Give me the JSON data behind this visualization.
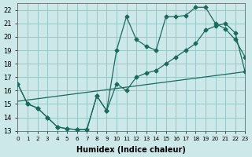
{
  "xlabel": "Humidex (Indice chaleur)",
  "bg_color": "#cce8e8",
  "grid_color": "#99c8c8",
  "line_color": "#1a6b5e",
  "xlim": [
    0,
    23
  ],
  "ylim": [
    13,
    22.5
  ],
  "xticks": [
    0,
    1,
    2,
    3,
    4,
    5,
    6,
    7,
    8,
    9,
    10,
    11,
    12,
    13,
    14,
    15,
    16,
    17,
    18,
    19,
    20,
    21,
    22,
    23
  ],
  "yticks": [
    13,
    14,
    15,
    16,
    17,
    18,
    19,
    20,
    21,
    22
  ],
  "line1_x": [
    0,
    1,
    2,
    3,
    4,
    5,
    6,
    7,
    8,
    9,
    10,
    11,
    12,
    13,
    14,
    15,
    16,
    17,
    18,
    19,
    20,
    21,
    22,
    23
  ],
  "line1_y": [
    16.5,
    15.0,
    14.7,
    14.0,
    13.3,
    13.15,
    13.1,
    13.1,
    15.6,
    14.5,
    19.0,
    21.5,
    19.8,
    19.3,
    19.0,
    21.5,
    21.5,
    21.6,
    22.2,
    22.2,
    21.0,
    20.6,
    19.8,
    18.5
  ],
  "line2_x": [
    0,
    1,
    2,
    3,
    4,
    5,
    6,
    7,
    8,
    9,
    10,
    11,
    12,
    13,
    14,
    15,
    16,
    17,
    18,
    19,
    20,
    21,
    22,
    23
  ],
  "line2_y": [
    16.5,
    15.0,
    14.7,
    14.0,
    13.3,
    13.15,
    13.1,
    13.1,
    15.6,
    14.5,
    16.5,
    16.0,
    17.0,
    17.3,
    17.5,
    18.0,
    18.5,
    19.0,
    19.5,
    20.5,
    20.8,
    21.0,
    20.3,
    17.4
  ],
  "line3_x": [
    0,
    23
  ],
  "line3_y": [
    15.2,
    17.4
  ]
}
